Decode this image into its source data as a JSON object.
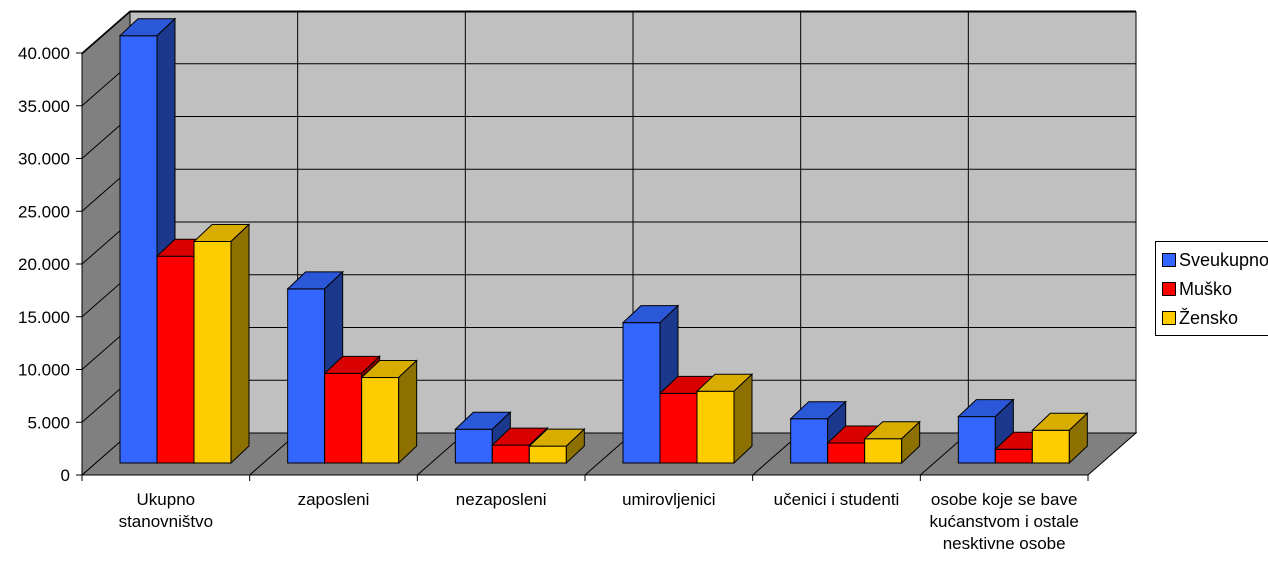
{
  "chart_data": {
    "type": "bar",
    "categories": [
      [
        "Ukupno",
        "stanovništvo"
      ],
      [
        "zaposleni"
      ],
      [
        "nezaposleni"
      ],
      [
        "umirovljenici"
      ],
      [
        "učenici i studenti"
      ],
      [
        "osobe koje se bave",
        "kućanstvom i ostale",
        "nesktivne osobe"
      ]
    ],
    "series": [
      {
        "name": "Sveukupno",
        "color": "#3366FF",
        "values": [
          40500,
          16500,
          3200,
          13300,
          4200,
          4400
        ]
      },
      {
        "name": "Muško",
        "color": "#FF0000",
        "values": [
          19600,
          8500,
          1700,
          6600,
          1900,
          1300
        ]
      },
      {
        "name": "Žensko",
        "color": "#FFCC00",
        "values": [
          21000,
          8100,
          1600,
          6800,
          2300,
          3100
        ]
      }
    ],
    "yticks": [
      "0",
      "5.000",
      "10.000",
      "15.000",
      "20.000",
      "25.000",
      "30.000",
      "35.000",
      "40.000"
    ],
    "ylim": [
      0,
      40000
    ],
    "grid": true,
    "legend": "right",
    "wall_color": "#C0C0C0",
    "floor_color": "#808080"
  },
  "legend_labels": [
    "Sveukupno",
    "Muško",
    "Žensko"
  ]
}
